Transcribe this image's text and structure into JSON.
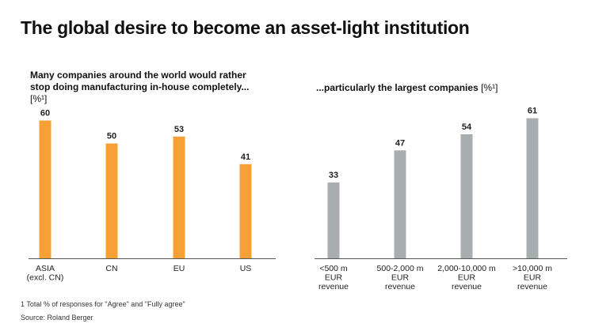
{
  "title": "The global desire to become an asset-light institution",
  "left_subtitle": "Many companies around the world would rather stop doing manufacturing in-house completely...",
  "left_unit": "[%¹]",
  "right_subtitle": "...particularly the largest companies",
  "right_unit": "[%¹]",
  "footnote": "1 Total % of responses for \"Agree\" and \"Fully agree\"",
  "source": "Source: Roland Berger",
  "colors": {
    "left_bar": "#F7A035",
    "right_bar": "#A8ADB0",
    "axis": "#555555"
  },
  "chart_data": [
    {
      "type": "bar",
      "title": "Many companies around the world would rather stop doing manufacturing in-house completely...",
      "unit": "%",
      "categories": [
        [
          "ASIA",
          "(excl. CN)"
        ],
        [
          "CN"
        ],
        [
          "EU"
        ],
        [
          "US"
        ]
      ],
      "values": [
        60,
        50,
        53,
        41
      ],
      "ylim": [
        0,
        65
      ],
      "grid": false
    },
    {
      "type": "bar",
      "title": "...particularly the largest companies",
      "unit": "%",
      "categories": [
        [
          "<500 m",
          "EUR",
          "revenue"
        ],
        [
          "500-2,000 m",
          "EUR",
          "revenue"
        ],
        [
          "2,000-10,000 m",
          "EUR",
          "revenue"
        ],
        [
          ">10,000 m",
          "EUR",
          "revenue"
        ]
      ],
      "values": [
        33,
        47,
        54,
        61
      ],
      "ylim": [
        0,
        65
      ],
      "grid": false
    }
  ]
}
